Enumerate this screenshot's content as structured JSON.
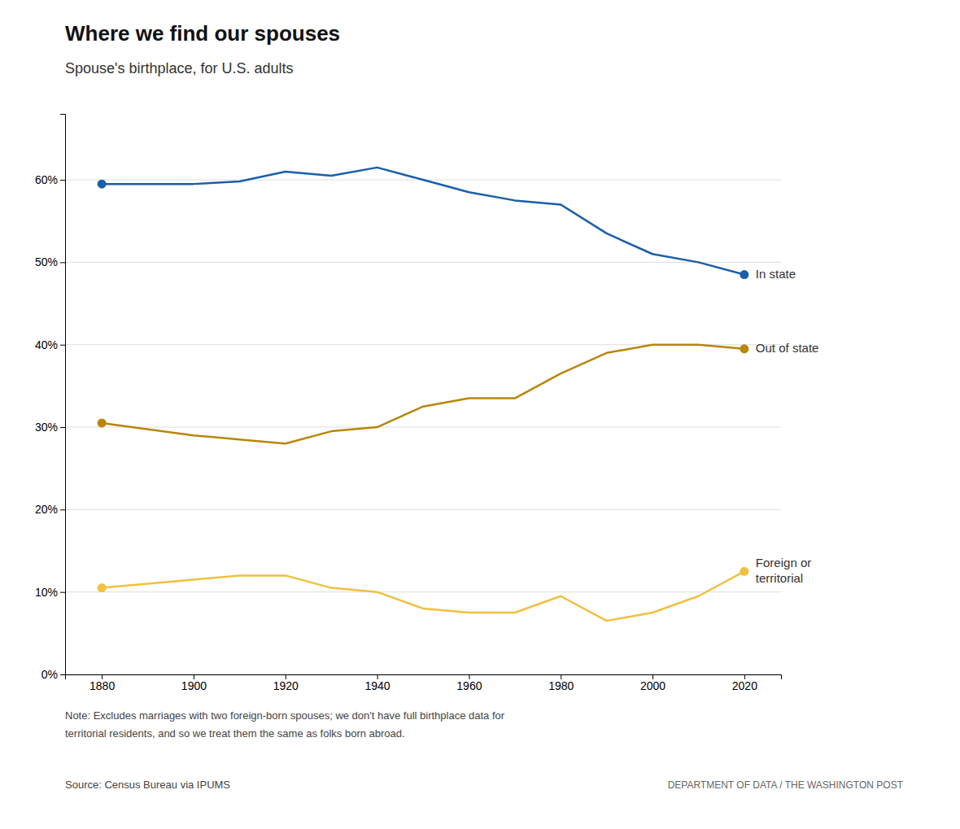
{
  "chart_data": {
    "type": "line",
    "title": "Where we find our spouses",
    "subtitle": "Spouse's birthplace, for U.S. adults",
    "x": [
      1880,
      1900,
      1910,
      1920,
      1930,
      1940,
      1950,
      1960,
      1970,
      1980,
      1990,
      2000,
      2010,
      2020
    ],
    "series": [
      {
        "name": "In state",
        "color": "#1a5fa8",
        "marker": "endpoints",
        "values": [
          59.5,
          59.5,
          59.8,
          61.0,
          60.5,
          61.5,
          60.0,
          58.5,
          57.5,
          57.0,
          53.5,
          51.0,
          50.0,
          48.5
        ]
      },
      {
        "name": "Out of state",
        "color": "#b8860b",
        "marker": "endpoints",
        "values": [
          30.5,
          29.0,
          28.5,
          28.0,
          29.5,
          30.0,
          32.5,
          33.5,
          33.5,
          36.5,
          39.0,
          40.0,
          40.0,
          39.5
        ]
      },
      {
        "name": "Foreign or\nterritorial",
        "color": "#f0c040",
        "marker": "endpoints",
        "values": [
          10.5,
          11.5,
          12.0,
          12.0,
          10.5,
          10.0,
          8.0,
          7.5,
          7.5,
          9.5,
          6.5,
          7.5,
          9.5,
          12.5
        ]
      }
    ],
    "xlim": [
      1872,
      2028
    ],
    "xticks": [
      1880,
      1900,
      1920,
      1940,
      1960,
      1980,
      2000,
      2020
    ],
    "ylim": [
      0,
      68
    ],
    "yticks": [
      {
        "value": 0,
        "label": "0%"
      },
      {
        "value": 10,
        "label": "10%"
      },
      {
        "value": 20,
        "label": "20%"
      },
      {
        "value": 30,
        "label": "30%"
      },
      {
        "value": 40,
        "label": "40%"
      },
      {
        "value": 50,
        "label": "50%"
      },
      {
        "value": 60,
        "label": "60%"
      }
    ],
    "grid": true,
    "notes": [
      "Note: Excludes marriages with two foreign-born spouses; we don't have full birthplace data for",
      "territorial residents, and so we treat them the same as folks born abroad."
    ],
    "source": "Source: Census Bureau via IPUMS",
    "credit": "DEPARTMENT OF DATA / THE WASHINGTON POST"
  }
}
